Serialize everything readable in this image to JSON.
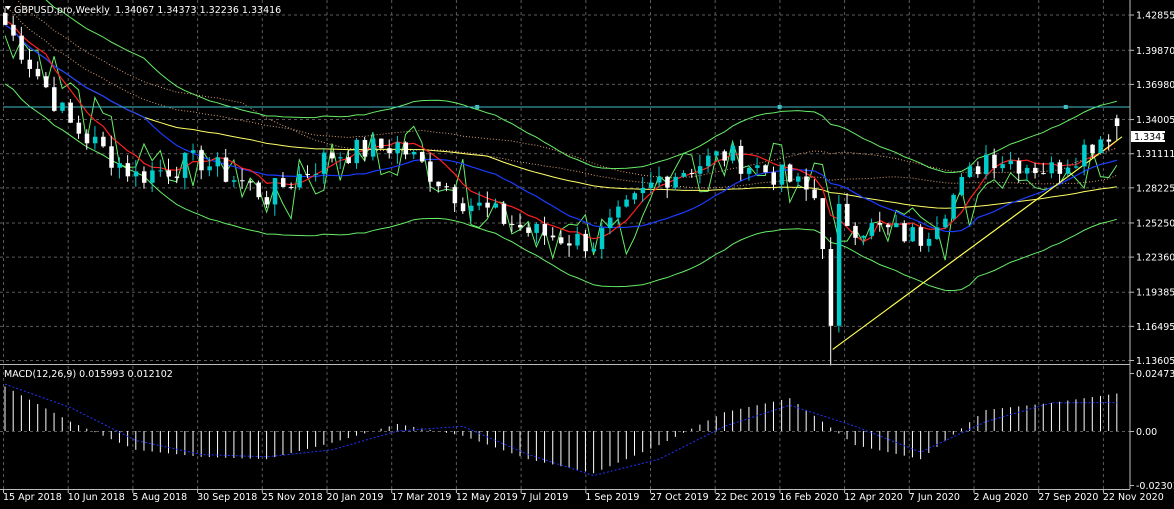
{
  "header": {
    "symbol_line": "GBPUSD.pro,Weekly",
    "ohlc": "1.34067 1.34373 1.32236 1.33416"
  },
  "price_scale": {
    "ticks": [
      "1.42855",
      "1.39870",
      "1.36980",
      "1.34005",
      "1.31111",
      "1.28225",
      "1.25250",
      "1.22360",
      "1.19385",
      "1.16495",
      "1.13605"
    ],
    "current_label": "1.33416"
  },
  "macd_panel": {
    "title": "MACD(12,26,9) 0.015993 0.012102",
    "ticks": [
      "0.024733",
      "0.00",
      "-0.023011"
    ]
  },
  "time_axis": {
    "labels": [
      "15 Apr 2018",
      "10 Jun 2018",
      "5 Aug 2018",
      "30 Sep 2018",
      "25 Nov 2018",
      "20 Jan 2019",
      "17 Mar 2019",
      "12 May 2019",
      "7 Jul 2019",
      "1 Sep 2019",
      "27 Oct 2019",
      "22 Dec 2019",
      "16 Feb 2020",
      "12 Apr 2020",
      "7 Jun 2020",
      "2 Aug 2020",
      "27 Sep 2020",
      "22 Nov 2020"
    ]
  },
  "colors": {
    "background": "#000000",
    "grid": "#5a5a5a",
    "bull": "#00cccc",
    "bear": "#ffffff",
    "ma_slow": "#ffff66",
    "ma_fast": "#ff2020",
    "ma_mid": "#1a3cff",
    "bands": "#66ee66",
    "hline": "#3fc0c8",
    "trendline": "#ffff55",
    "macd_hist": "#ffffff",
    "macd_signal": "#2233ff"
  },
  "chart_data": [
    {
      "type": "candlestick",
      "title": "GBPUSD.pro,Weekly",
      "x": [
        "15 Apr 2018",
        "10 Jun 2018",
        "5 Aug 2018",
        "30 Sep 2018",
        "25 Nov 2018",
        "20 Jan 2019",
        "17 Mar 2019",
        "12 May 2019",
        "7 Jul 2019",
        "1 Sep 2019",
        "27 Oct 2019",
        "22 Dec 2019",
        "16 Feb 2020",
        "12 Apr 2020",
        "7 Jun 2020",
        "2 Aug 2020",
        "27 Sep 2020",
        "22 Nov 2020"
      ],
      "close_approx": [
        1.42,
        1.335,
        1.292,
        1.305,
        1.275,
        1.31,
        1.318,
        1.272,
        1.245,
        1.235,
        1.29,
        1.31,
        1.288,
        1.25,
        1.24,
        1.31,
        1.297,
        1.33416
      ],
      "last_ohlc": {
        "open": 1.34067,
        "high": 1.34373,
        "low": 1.32236,
        "close": 1.33416
      },
      "ylim": [
        1.13605,
        1.44
      ],
      "grid": true,
      "annotations": [
        "horizontal level near 1.3503",
        "rising trendline from March 2020 low",
        "Ichimoku-style cloud",
        "moving averages",
        "envelope bands"
      ]
    },
    {
      "type": "bar",
      "title": "MACD(12,26,9) 0.015993 0.012102",
      "x": [
        "15 Apr 2018",
        "10 Jun 2018",
        "5 Aug 2018",
        "30 Sep 2018",
        "25 Nov 2018",
        "20 Jan 2019",
        "17 Mar 2019",
        "12 May 2019",
        "7 Jul 2019",
        "1 Sep 2019",
        "27 Oct 2019",
        "22 Dec 2019",
        "16 Feb 2020",
        "12 Apr 2020",
        "7 Jun 2020",
        "2 Aug 2020",
        "27 Sep 2020",
        "22 Nov 2020"
      ],
      "values": [
        0.019,
        0.004,
        -0.008,
        -0.011,
        -0.012,
        -0.005,
        0.003,
        -0.002,
        -0.012,
        -0.018,
        -0.006,
        0.008,
        0.014,
        -0.006,
        -0.012,
        0.009,
        0.012,
        0.015993
      ],
      "signal": [
        0.02,
        0.01,
        -0.004,
        -0.01,
        -0.011,
        -0.008,
        0.0,
        0.002,
        -0.01,
        -0.019,
        -0.012,
        0.002,
        0.011,
        0.002,
        -0.009,
        0.004,
        0.012,
        0.012102
      ],
      "ylim": [
        -0.023011,
        0.024733
      ],
      "grid": true
    }
  ]
}
